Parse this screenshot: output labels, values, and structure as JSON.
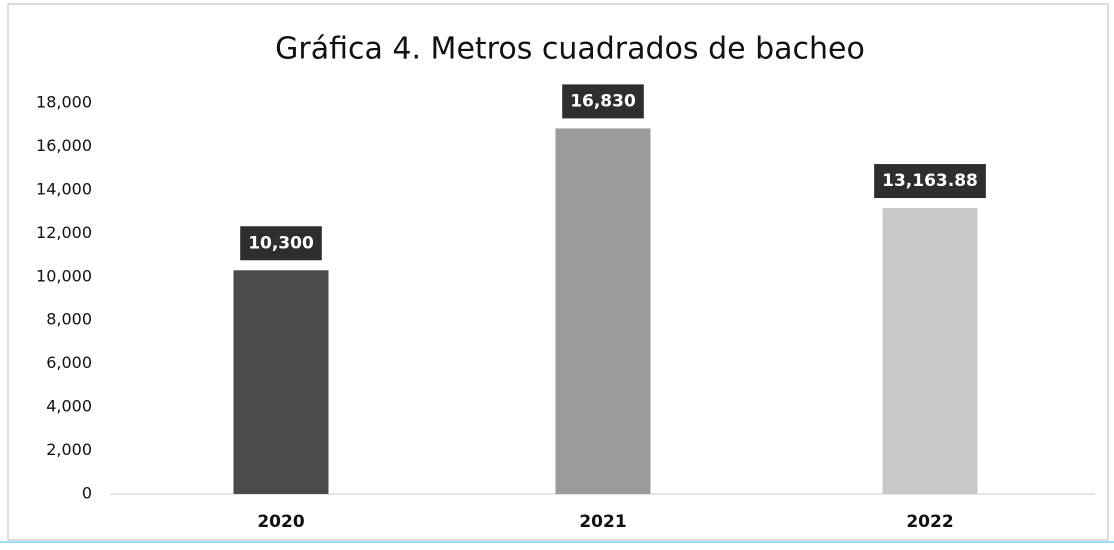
{
  "chart_data": {
    "type": "bar",
    "title": "Gráfica 4. Metros cuadrados de bacheo",
    "categories": [
      "2020",
      "2021",
      "2022"
    ],
    "values": [
      10300,
      16830,
      13163.88
    ],
    "value_labels": [
      "10,300",
      "16,830",
      "13,163.88"
    ],
    "colors": [
      "#4b4b4b",
      "#9b9b9b",
      "#c9c9c9"
    ],
    "ylim": [
      0,
      18000
    ],
    "yticks": [
      0,
      {
        "value": 2000,
        "label": "2,000"
      },
      {
        "value": 4000,
        "label": "4,000"
      },
      {
        "value": 6000,
        "label": "6,000"
      },
      {
        "value": 8000,
        "label": "8,000"
      },
      {
        "value": 10000,
        "label": "10,000"
      },
      {
        "value": 12000,
        "label": "12,000"
      },
      {
        "value": 14000,
        "label": "14,000"
      },
      {
        "value": 16000,
        "label": "16,000"
      },
      {
        "value": 18000,
        "label": "18,000"
      }
    ]
  }
}
